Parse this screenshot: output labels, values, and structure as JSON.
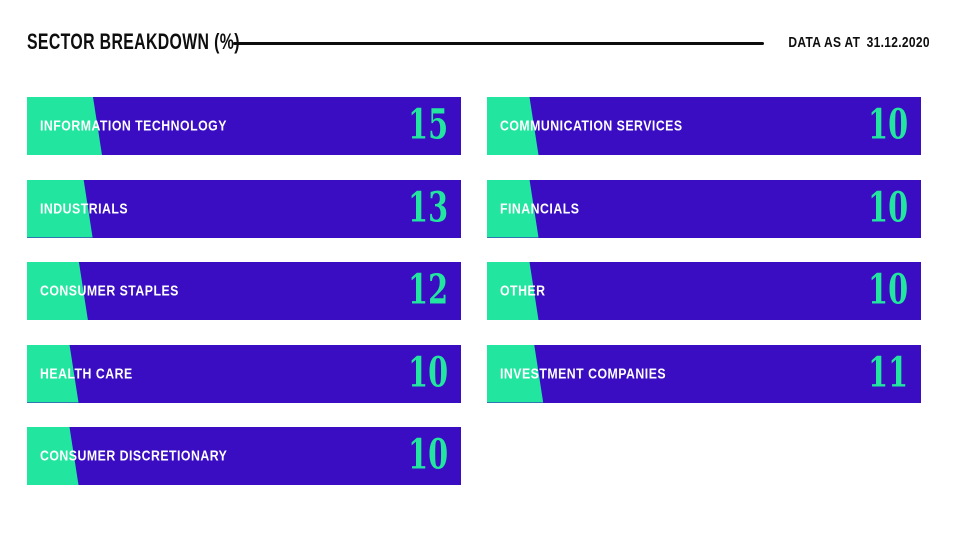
{
  "header": {
    "title": "SECTOR BREAKDOWN (%)",
    "date_label": "DATA AS AT",
    "date_value": "31.12.2020"
  },
  "colors": {
    "bar_blue": "#3A0CC2",
    "accent_green": "#22E5A0",
    "text_dark": "#0E0E0E",
    "label_white": "#FFFFFF",
    "background": "#FFFFFF"
  },
  "chart_data": {
    "type": "bar",
    "title": "SECTOR BREAKDOWN (%)",
    "unit": "%",
    "categories": [
      "INFORMATION TECHNOLOGY",
      "INDUSTRIALS",
      "CONSUMER STAPLES",
      "HEALTH CARE",
      "CONSUMER DISCRETIONARY",
      "COMMUNICATION SERVICES",
      "FINANCIALS",
      "OTHER",
      "INVESTMENT COMPANIES"
    ],
    "values": [
      15,
      13,
      12,
      10,
      10,
      10,
      10,
      10,
      11
    ],
    "legend": "none",
    "grid": "off",
    "layout_hint": "two columns of horizontal label bars; green left wedge width proportional to value, slanted edge leaning right toward bottom; value printed in serif digits at right end of each bar",
    "columns": [
      {
        "bars": [
          {
            "label": "INFORMATION TECHNOLOGY",
            "value": 15
          },
          {
            "label": "INDUSTRIALS",
            "value": 13
          },
          {
            "label": "CONSUMER STAPLES",
            "value": 12
          },
          {
            "label": "HEALTH CARE",
            "value": 10
          },
          {
            "label": "CONSUMER DISCRETIONARY",
            "value": 10
          }
        ]
      },
      {
        "bars": [
          {
            "label": "COMMUNICATION SERVICES",
            "value": 10
          },
          {
            "label": "FINANCIALS",
            "value": 10
          },
          {
            "label": "OTHER",
            "value": 10
          },
          {
            "label": "INVESTMENT COMPANIES",
            "value": 11
          }
        ]
      }
    ]
  }
}
